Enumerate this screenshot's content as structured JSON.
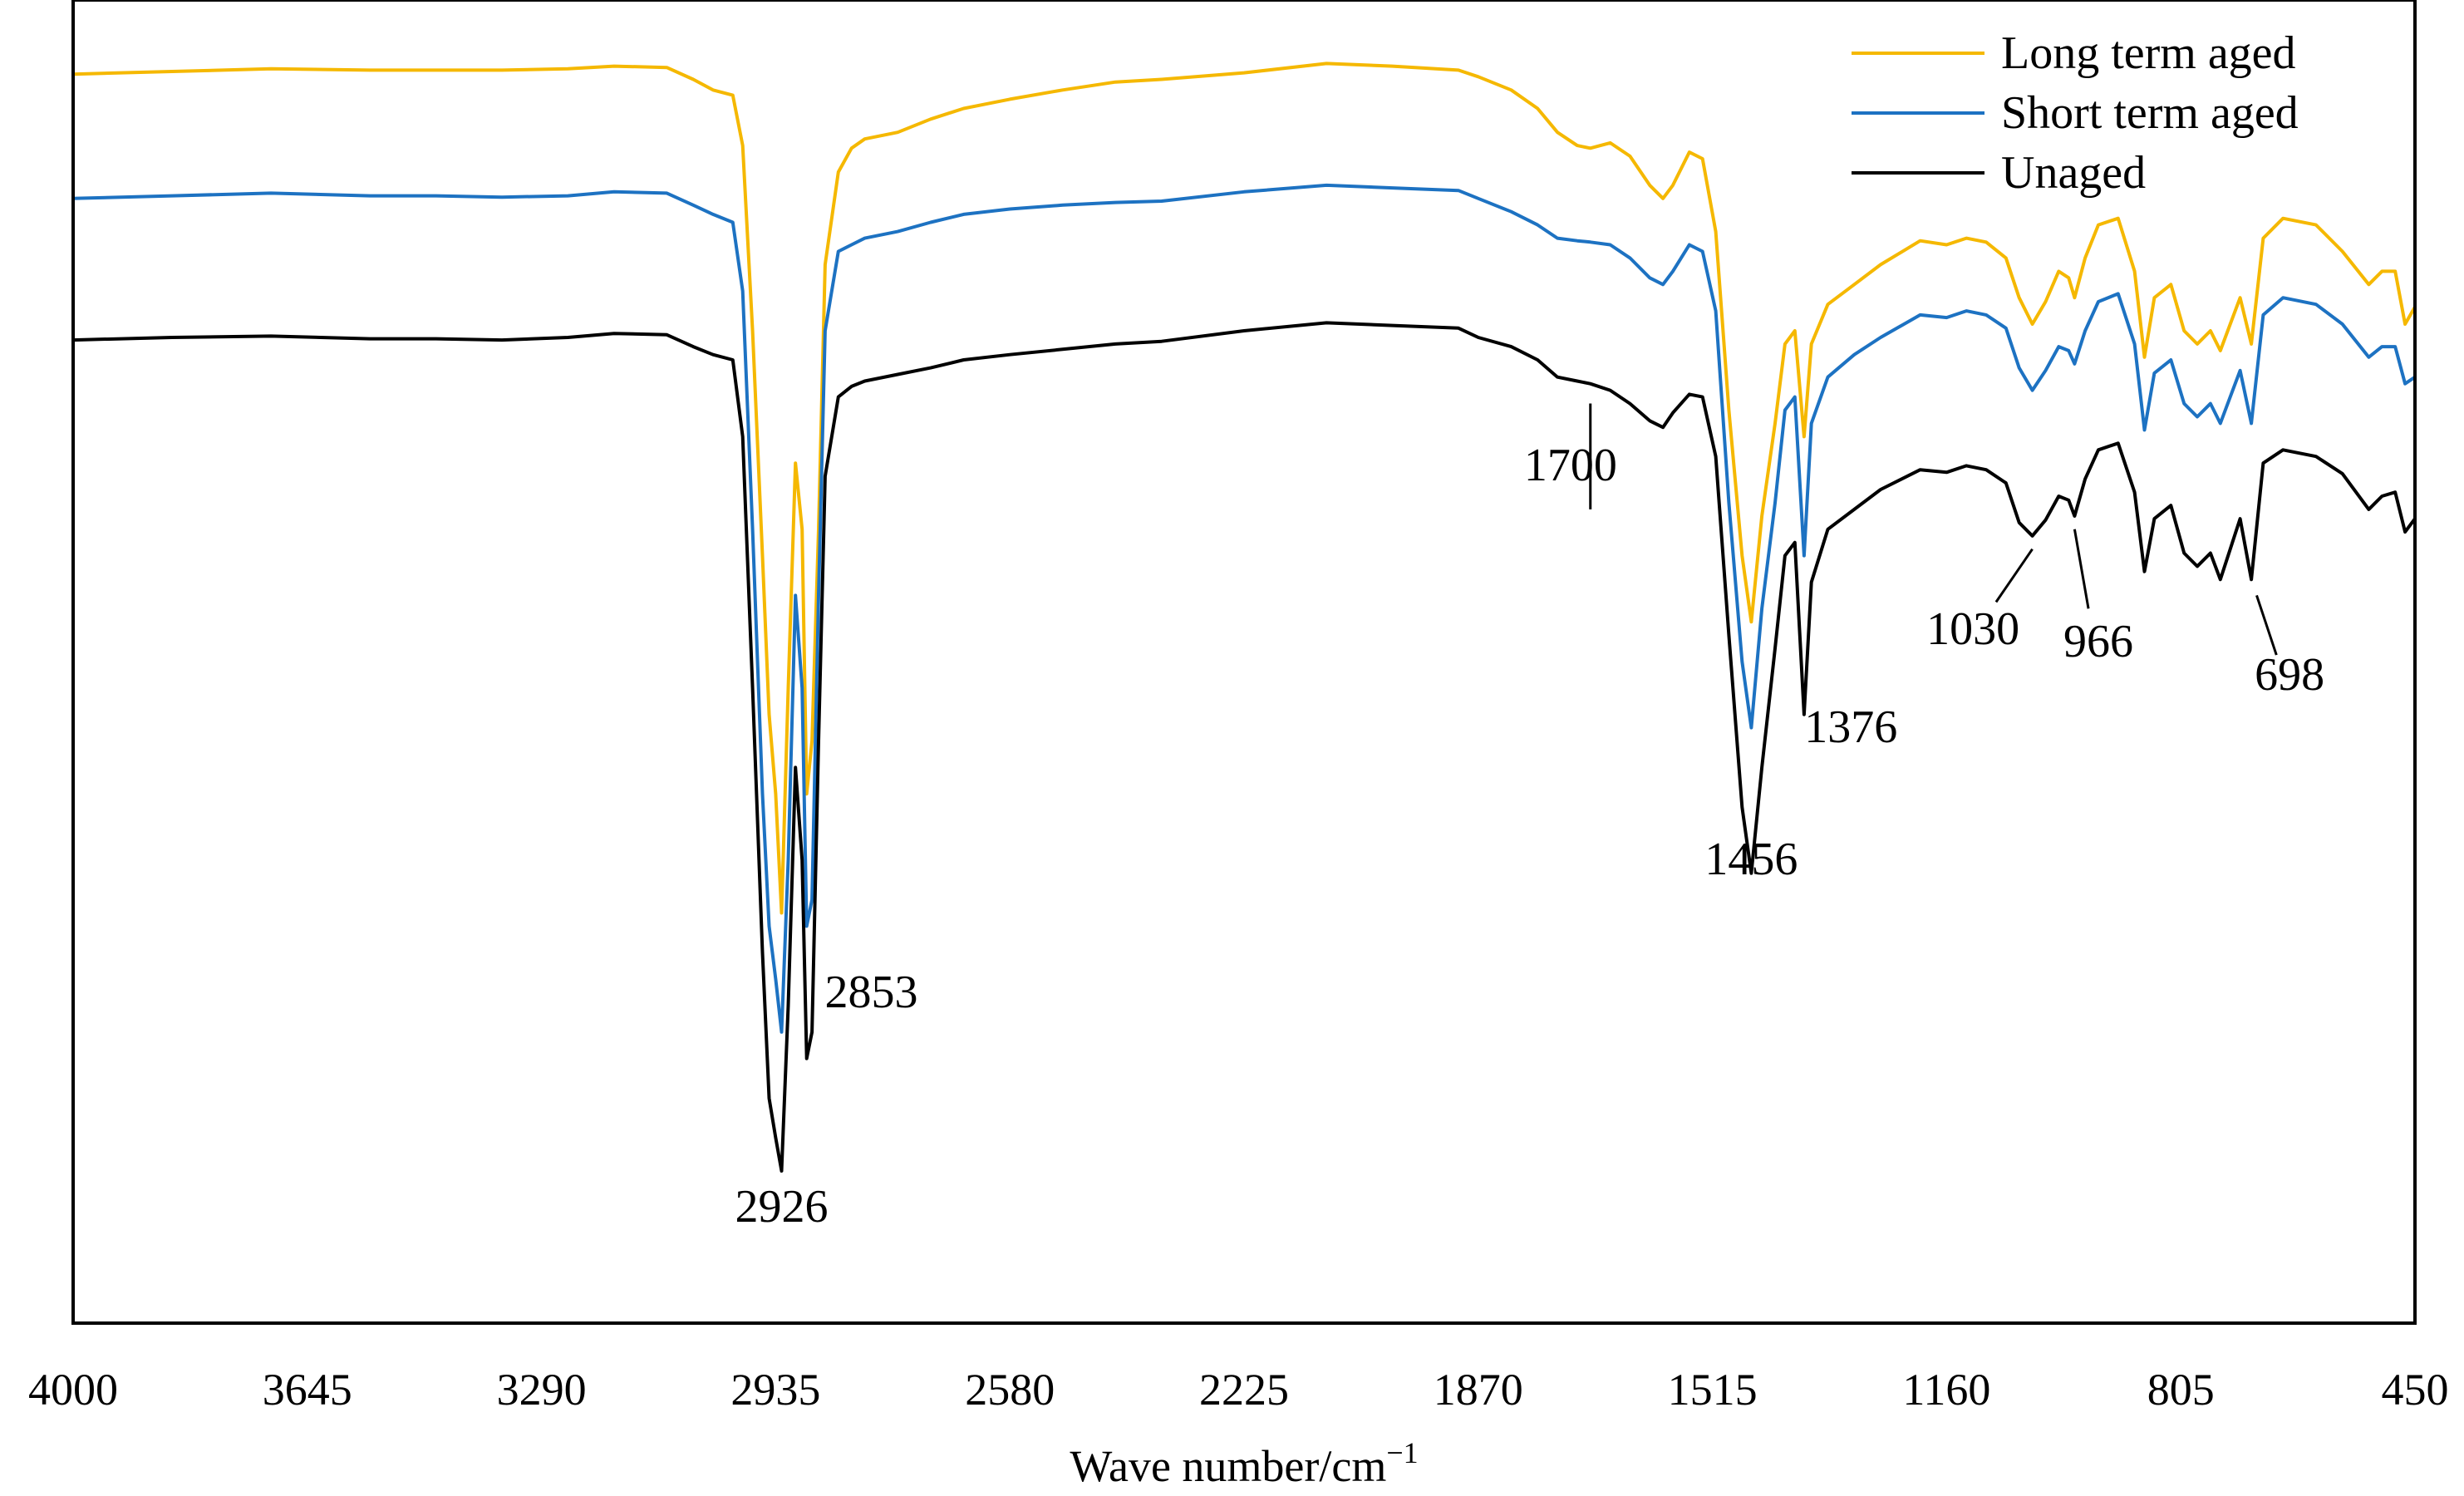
{
  "chart_data": {
    "type": "line",
    "title": "",
    "xlabel": "Wave number/cm",
    "xlabel_superscript": "−1",
    "ylabel": "",
    "xlim": [
      4000,
      450
    ],
    "x_reversed": true,
    "x_ticks": [
      "4000",
      "3645",
      "3290",
      "2935",
      "2580",
      "2225",
      "1870",
      "1515",
      "1160",
      "805",
      "450"
    ],
    "grid": false,
    "y_ticks_shown": false,
    "legend_position": "top-right",
    "series": [
      {
        "name": "Long term aged",
        "color": "#F5B800",
        "points": [
          [
            4000,
            0.056
          ],
          [
            3850,
            0.054
          ],
          [
            3700,
            0.052
          ],
          [
            3550,
            0.053
          ],
          [
            3450,
            0.053
          ],
          [
            3350,
            0.053
          ],
          [
            3250,
            0.052
          ],
          [
            3180,
            0.05
          ],
          [
            3100,
            0.051
          ],
          [
            3060,
            0.06
          ],
          [
            3030,
            0.068
          ],
          [
            3000,
            0.072
          ],
          [
            2985,
            0.11
          ],
          [
            2970,
            0.25
          ],
          [
            2955,
            0.42
          ],
          [
            2945,
            0.54
          ],
          [
            2935,
            0.6
          ],
          [
            2926,
            0.69
          ],
          [
            2916,
            0.52
          ],
          [
            2905,
            0.35
          ],
          [
            2895,
            0.4
          ],
          [
            2888,
            0.6
          ],
          [
            2880,
            0.56
          ],
          [
            2870,
            0.4
          ],
          [
            2860,
            0.2
          ],
          [
            2840,
            0.13
          ],
          [
            2820,
            0.112
          ],
          [
            2800,
            0.105
          ],
          [
            2750,
            0.1
          ],
          [
            2700,
            0.09
          ],
          [
            2650,
            0.082
          ],
          [
            2580,
            0.075
          ],
          [
            2500,
            0.068
          ],
          [
            2420,
            0.062
          ],
          [
            2350,
            0.06
          ],
          [
            2225,
            0.055
          ],
          [
            2100,
            0.048
          ],
          [
            2000,
            0.05
          ],
          [
            1900,
            0.053
          ],
          [
            1870,
            0.058
          ],
          [
            1820,
            0.068
          ],
          [
            1780,
            0.082
          ],
          [
            1750,
            0.1
          ],
          [
            1720,
            0.11
          ],
          [
            1700,
            0.112
          ],
          [
            1670,
            0.108
          ],
          [
            1640,
            0.118
          ],
          [
            1610,
            0.14
          ],
          [
            1590,
            0.15
          ],
          [
            1575,
            0.14
          ],
          [
            1550,
            0.115
          ],
          [
            1530,
            0.12
          ],
          [
            1510,
            0.175
          ],
          [
            1490,
            0.31
          ],
          [
            1470,
            0.42
          ],
          [
            1456,
            0.47
          ],
          [
            1440,
            0.39
          ],
          [
            1420,
            0.32
          ],
          [
            1405,
            0.26
          ],
          [
            1390,
            0.25
          ],
          [
            1376,
            0.33
          ],
          [
            1365,
            0.26
          ],
          [
            1340,
            0.23
          ],
          [
            1300,
            0.215
          ],
          [
            1260,
            0.2
          ],
          [
            1200,
            0.182
          ],
          [
            1160,
            0.185
          ],
          [
            1130,
            0.18
          ],
          [
            1100,
            0.183
          ],
          [
            1070,
            0.195
          ],
          [
            1050,
            0.225
          ],
          [
            1030,
            0.245
          ],
          [
            1010,
            0.228
          ],
          [
            990,
            0.205
          ],
          [
            975,
            0.21
          ],
          [
            966,
            0.225
          ],
          [
            950,
            0.195
          ],
          [
            930,
            0.17
          ],
          [
            900,
            0.165
          ],
          [
            875,
            0.205
          ],
          [
            860,
            0.27
          ],
          [
            845,
            0.225
          ],
          [
            820,
            0.215
          ],
          [
            800,
            0.25
          ],
          [
            780,
            0.26
          ],
          [
            760,
            0.25
          ],
          [
            745,
            0.265
          ],
          [
            730,
            0.245
          ],
          [
            715,
            0.225
          ],
          [
            698,
            0.26
          ],
          [
            680,
            0.18
          ],
          [
            650,
            0.165
          ],
          [
            600,
            0.17
          ],
          [
            560,
            0.19
          ],
          [
            520,
            0.215
          ],
          [
            500,
            0.205
          ],
          [
            480,
            0.205
          ],
          [
            465,
            0.245
          ],
          [
            450,
            0.232
          ]
        ]
      },
      {
        "name": "Short term aged",
        "color": "#1D72C2",
        "points": [
          [
            4000,
            0.15
          ],
          [
            3850,
            0.148
          ],
          [
            3700,
            0.146
          ],
          [
            3550,
            0.148
          ],
          [
            3450,
            0.148
          ],
          [
            3350,
            0.149
          ],
          [
            3250,
            0.148
          ],
          [
            3180,
            0.145
          ],
          [
            3100,
            0.146
          ],
          [
            3060,
            0.155
          ],
          [
            3030,
            0.162
          ],
          [
            3000,
            0.168
          ],
          [
            2985,
            0.22
          ],
          [
            2970,
            0.4
          ],
          [
            2955,
            0.6
          ],
          [
            2945,
            0.7
          ],
          [
            2935,
            0.74
          ],
          [
            2926,
            0.78
          ],
          [
            2916,
            0.65
          ],
          [
            2905,
            0.45
          ],
          [
            2895,
            0.52
          ],
          [
            2888,
            0.7
          ],
          [
            2880,
            0.68
          ],
          [
            2870,
            0.45
          ],
          [
            2860,
            0.25
          ],
          [
            2840,
            0.19
          ],
          [
            2820,
            0.185
          ],
          [
            2800,
            0.18
          ],
          [
            2750,
            0.175
          ],
          [
            2700,
            0.168
          ],
          [
            2650,
            0.162
          ],
          [
            2580,
            0.158
          ],
          [
            2500,
            0.155
          ],
          [
            2420,
            0.153
          ],
          [
            2350,
            0.152
          ],
          [
            2225,
            0.145
          ],
          [
            2100,
            0.14
          ],
          [
            2000,
            0.142
          ],
          [
            1900,
            0.144
          ],
          [
            1870,
            0.15
          ],
          [
            1820,
            0.16
          ],
          [
            1780,
            0.17
          ],
          [
            1750,
            0.18
          ],
          [
            1720,
            0.182
          ],
          [
            1700,
            0.183
          ],
          [
            1670,
            0.185
          ],
          [
            1640,
            0.195
          ],
          [
            1610,
            0.21
          ],
          [
            1590,
            0.215
          ],
          [
            1575,
            0.205
          ],
          [
            1550,
            0.185
          ],
          [
            1530,
            0.19
          ],
          [
            1510,
            0.235
          ],
          [
            1490,
            0.38
          ],
          [
            1470,
            0.5
          ],
          [
            1456,
            0.55
          ],
          [
            1440,
            0.46
          ],
          [
            1420,
            0.38
          ],
          [
            1405,
            0.31
          ],
          [
            1390,
            0.3
          ],
          [
            1376,
            0.42
          ],
          [
            1365,
            0.32
          ],
          [
            1340,
            0.285
          ],
          [
            1300,
            0.268
          ],
          [
            1260,
            0.255
          ],
          [
            1200,
            0.238
          ],
          [
            1160,
            0.24
          ],
          [
            1130,
            0.235
          ],
          [
            1100,
            0.238
          ],
          [
            1070,
            0.248
          ],
          [
            1050,
            0.278
          ],
          [
            1030,
            0.295
          ],
          [
            1010,
            0.28
          ],
          [
            990,
            0.262
          ],
          [
            975,
            0.265
          ],
          [
            966,
            0.275
          ],
          [
            950,
            0.25
          ],
          [
            930,
            0.228
          ],
          [
            900,
            0.222
          ],
          [
            875,
            0.26
          ],
          [
            860,
            0.325
          ],
          [
            845,
            0.282
          ],
          [
            820,
            0.272
          ],
          [
            800,
            0.305
          ],
          [
            780,
            0.315
          ],
          [
            760,
            0.305
          ],
          [
            745,
            0.32
          ],
          [
            730,
            0.3
          ],
          [
            715,
            0.28
          ],
          [
            698,
            0.32
          ],
          [
            680,
            0.238
          ],
          [
            650,
            0.225
          ],
          [
            600,
            0.23
          ],
          [
            560,
            0.245
          ],
          [
            520,
            0.27
          ],
          [
            500,
            0.262
          ],
          [
            480,
            0.262
          ],
          [
            465,
            0.29
          ],
          [
            450,
            0.285
          ]
        ]
      },
      {
        "name": "Unaged",
        "color": "#000000",
        "points": [
          [
            4000,
            0.257
          ],
          [
            3850,
            0.255
          ],
          [
            3700,
            0.254
          ],
          [
            3550,
            0.256
          ],
          [
            3450,
            0.256
          ],
          [
            3350,
            0.257
          ],
          [
            3250,
            0.255
          ],
          [
            3180,
            0.252
          ],
          [
            3100,
            0.253
          ],
          [
            3060,
            0.262
          ],
          [
            3030,
            0.268
          ],
          [
            3000,
            0.272
          ],
          [
            2985,
            0.33
          ],
          [
            2970,
            0.52
          ],
          [
            2955,
            0.72
          ],
          [
            2945,
            0.83
          ],
          [
            2935,
            0.86
          ],
          [
            2926,
            0.885
          ],
          [
            2916,
            0.76
          ],
          [
            2905,
            0.58
          ],
          [
            2895,
            0.65
          ],
          [
            2888,
            0.8
          ],
          [
            2880,
            0.78
          ],
          [
            2870,
            0.56
          ],
          [
            2860,
            0.36
          ],
          [
            2840,
            0.3
          ],
          [
            2820,
            0.292
          ],
          [
            2800,
            0.288
          ],
          [
            2750,
            0.283
          ],
          [
            2700,
            0.278
          ],
          [
            2650,
            0.272
          ],
          [
            2580,
            0.268
          ],
          [
            2500,
            0.264
          ],
          [
            2420,
            0.26
          ],
          [
            2350,
            0.258
          ],
          [
            2225,
            0.25
          ],
          [
            2100,
            0.244
          ],
          [
            2000,
            0.246
          ],
          [
            1900,
            0.248
          ],
          [
            1870,
            0.255
          ],
          [
            1820,
            0.262
          ],
          [
            1780,
            0.272
          ],
          [
            1750,
            0.285
          ],
          [
            1720,
            0.288
          ],
          [
            1700,
            0.29
          ],
          [
            1670,
            0.295
          ],
          [
            1640,
            0.305
          ],
          [
            1610,
            0.318
          ],
          [
            1590,
            0.323
          ],
          [
            1575,
            0.312
          ],
          [
            1550,
            0.298
          ],
          [
            1530,
            0.3
          ],
          [
            1510,
            0.345
          ],
          [
            1490,
            0.48
          ],
          [
            1470,
            0.61
          ],
          [
            1456,
            0.66
          ],
          [
            1440,
            0.58
          ],
          [
            1420,
            0.49
          ],
          [
            1405,
            0.42
          ],
          [
            1390,
            0.41
          ],
          [
            1376,
            0.54
          ],
          [
            1365,
            0.44
          ],
          [
            1340,
            0.4
          ],
          [
            1300,
            0.385
          ],
          [
            1260,
            0.37
          ],
          [
            1200,
            0.355
          ],
          [
            1160,
            0.357
          ],
          [
            1130,
            0.352
          ],
          [
            1100,
            0.355
          ],
          [
            1070,
            0.365
          ],
          [
            1050,
            0.395
          ],
          [
            1030,
            0.405
          ],
          [
            1010,
            0.393
          ],
          [
            990,
            0.375
          ],
          [
            975,
            0.378
          ],
          [
            966,
            0.39
          ],
          [
            950,
            0.362
          ],
          [
            930,
            0.34
          ],
          [
            900,
            0.335
          ],
          [
            875,
            0.372
          ],
          [
            860,
            0.432
          ],
          [
            845,
            0.392
          ],
          [
            820,
            0.382
          ],
          [
            800,
            0.418
          ],
          [
            780,
            0.428
          ],
          [
            760,
            0.418
          ],
          [
            745,
            0.438
          ],
          [
            730,
            0.415
          ],
          [
            715,
            0.392
          ],
          [
            698,
            0.438
          ],
          [
            680,
            0.35
          ],
          [
            650,
            0.34
          ],
          [
            600,
            0.345
          ],
          [
            560,
            0.358
          ],
          [
            520,
            0.385
          ],
          [
            500,
            0.375
          ],
          [
            480,
            0.372
          ],
          [
            465,
            0.402
          ],
          [
            450,
            0.392
          ]
        ]
      }
    ],
    "annotations": [
      {
        "label": "2926",
        "x": 2926,
        "series": "Unaged"
      },
      {
        "label": "2853",
        "x": 2853,
        "series": "Unaged"
      },
      {
        "label": "1700",
        "x": 1700,
        "series": "Unaged"
      },
      {
        "label": "1456",
        "x": 1456,
        "series": "Unaged"
      },
      {
        "label": "1376",
        "x": 1376,
        "series": "Unaged"
      },
      {
        "label": "1030",
        "x": 1030,
        "series": "Unaged"
      },
      {
        "label": "966",
        "x": 966,
        "series": "Unaged"
      },
      {
        "label": "698",
        "x": 698,
        "series": "Unaged"
      }
    ]
  }
}
